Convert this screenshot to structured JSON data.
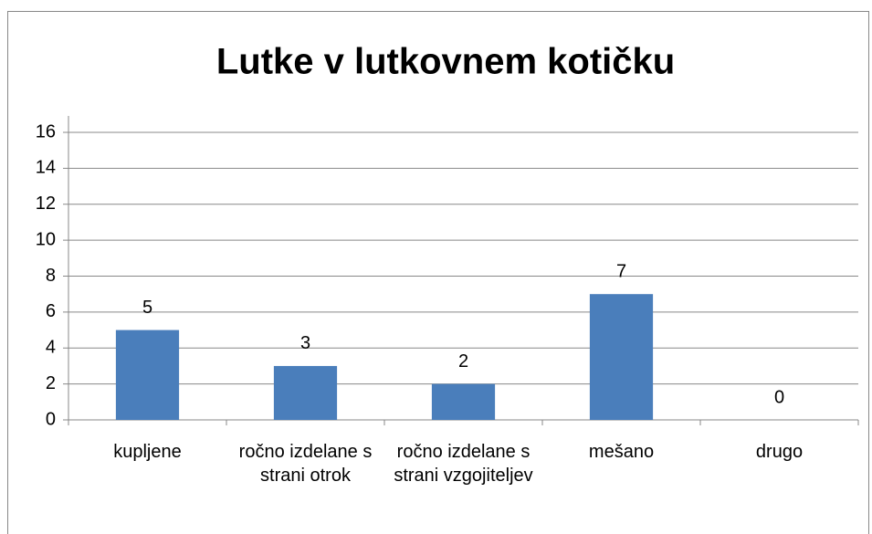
{
  "chart_data": {
    "type": "bar",
    "title": "Lutke v lutkovnem kotičku",
    "categories": [
      "kupljene",
      "ročno izdelane s strani otrok",
      "ročno izdelane s strani vzgojiteljev",
      "mešano",
      "drugo"
    ],
    "values": [
      5,
      3,
      2,
      7,
      0
    ],
    "color": "#4a7ebb",
    "ylim": [
      0,
      16
    ],
    "yticks": [
      0,
      2,
      4,
      6,
      8,
      10,
      12,
      14,
      16
    ],
    "grid": true
  }
}
